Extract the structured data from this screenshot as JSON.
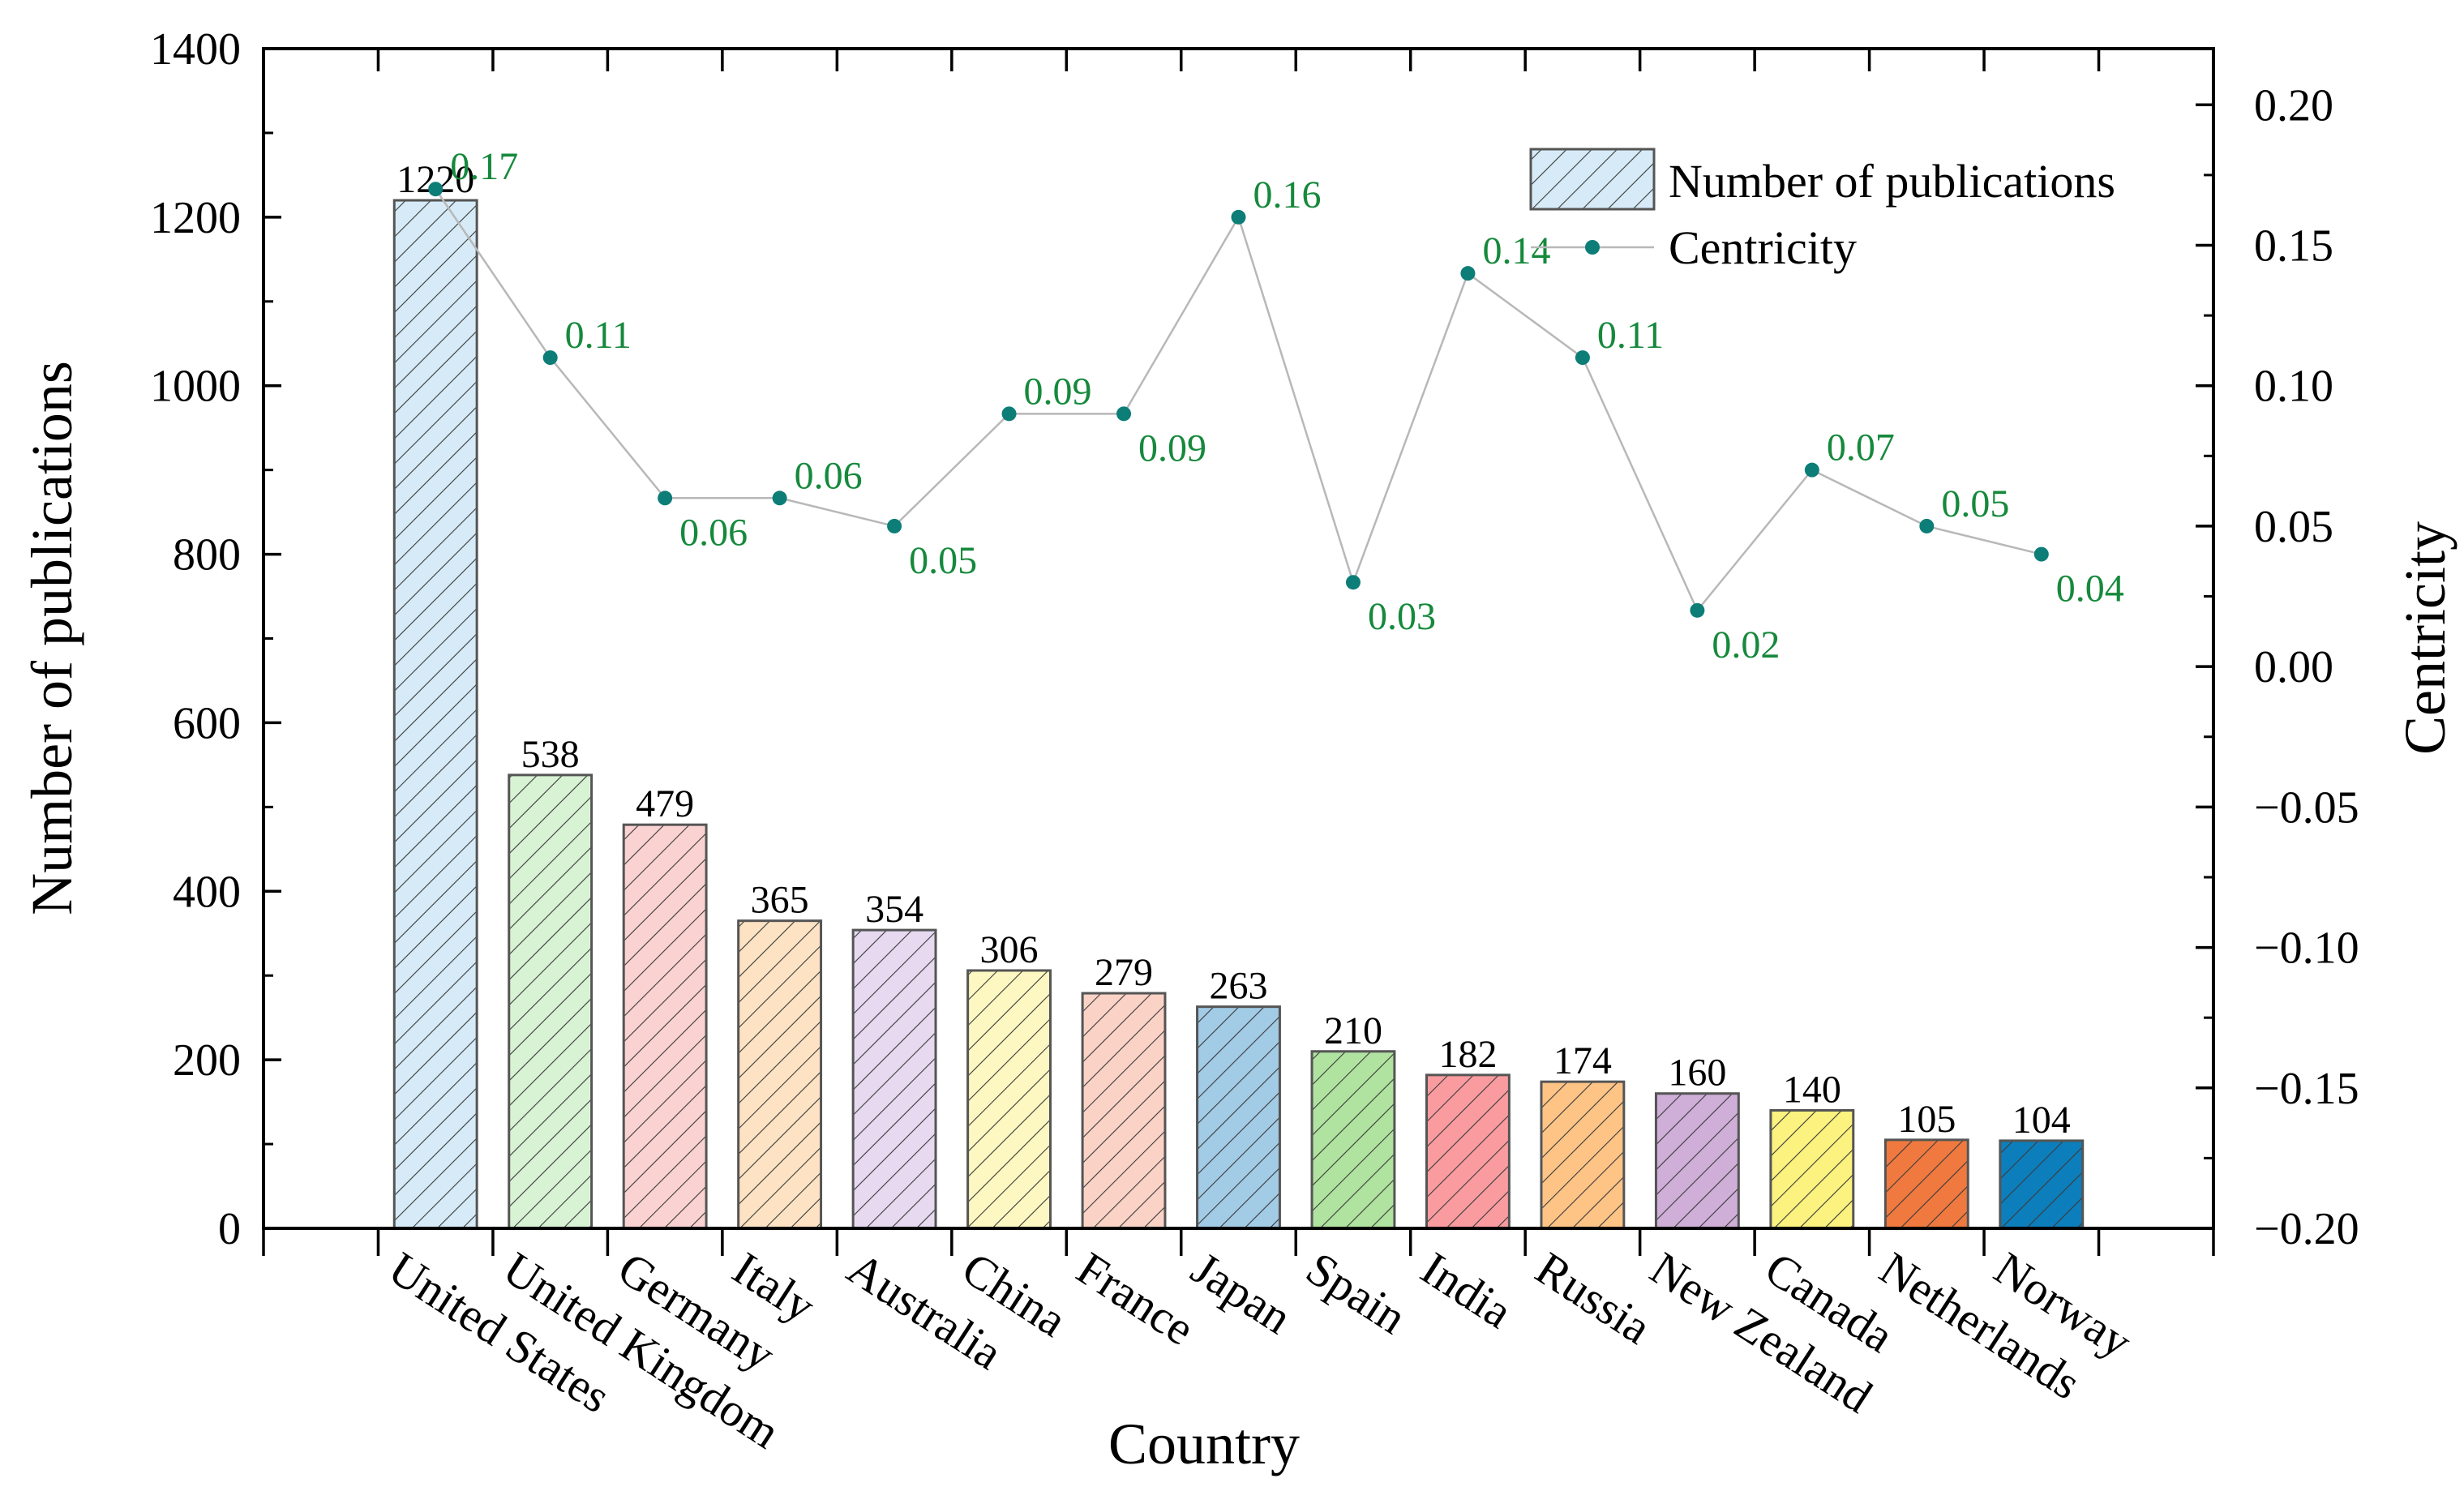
{
  "chart_data": {
    "type": "bar+line",
    "xlabel": "Country",
    "ylabel": "Number of publications",
    "y2label": "Centricity",
    "categories": [
      "United States",
      "United Kingdom",
      "Germany",
      "Italy",
      "Australia",
      "China",
      "France",
      "Japan",
      "Spain",
      "India",
      "Russia",
      "New Zealand",
      "Canada",
      "Netherlands",
      "Norway"
    ],
    "series": [
      {
        "name": "Number of publications",
        "type": "bar",
        "axis": "left",
        "values": [
          1220,
          538,
          479,
          365,
          354,
          306,
          279,
          263,
          210,
          182,
          174,
          160,
          140,
          105,
          104
        ],
        "labels": [
          "1220",
          "538",
          "479",
          "365",
          "354",
          "306",
          "279",
          "263",
          "210",
          "182",
          "174",
          "160",
          "140",
          "105",
          "104"
        ],
        "pattern": "diagonal-hatch",
        "colors": [
          "#d6ebf7",
          "#d8f2d4",
          "#fbd2d2",
          "#fde3c3",
          "#e6d9f0",
          "#fdf8c1",
          "#fbd3c6",
          "#a2cbe6",
          "#b0e39f",
          "#fa9c9f",
          "#fdc486",
          "#cfaed8",
          "#fbf27f",
          "#f0793f",
          "#0d7ebc"
        ]
      },
      {
        "name": "Centricity",
        "type": "line",
        "axis": "right",
        "values": [
          0.17,
          0.11,
          0.06,
          0.06,
          0.05,
          0.09,
          0.09,
          0.16,
          0.03,
          0.14,
          0.11,
          0.02,
          0.07,
          0.05,
          0.04
        ],
        "labels": [
          "0.17",
          "0.11",
          "0.06",
          "0.06",
          "0.05",
          "0.09",
          "0.09",
          "0.16",
          "0.03",
          "0.14",
          "0.11",
          "0.02",
          "0.07",
          "0.05",
          "0.04"
        ],
        "label_color": "#16893c",
        "marker_color": "#0d7d78",
        "line_color": "#b8b8b8"
      }
    ],
    "ylim": [
      0,
      1400
    ],
    "yticks": [
      "0",
      "200",
      "400",
      "600",
      "800",
      "1000",
      "1200",
      "1400"
    ],
    "y2lim": [
      -0.2,
      0.22
    ],
    "y2ticks": [
      "−0.20",
      "−0.15",
      "−0.10",
      "−0.05",
      "0.00",
      "0.05",
      "0.10",
      "0.15",
      "0.20"
    ],
    "legend": {
      "position": "top-right",
      "entries": [
        "Number of publications",
        "Centricity"
      ]
    },
    "grid": false
  }
}
